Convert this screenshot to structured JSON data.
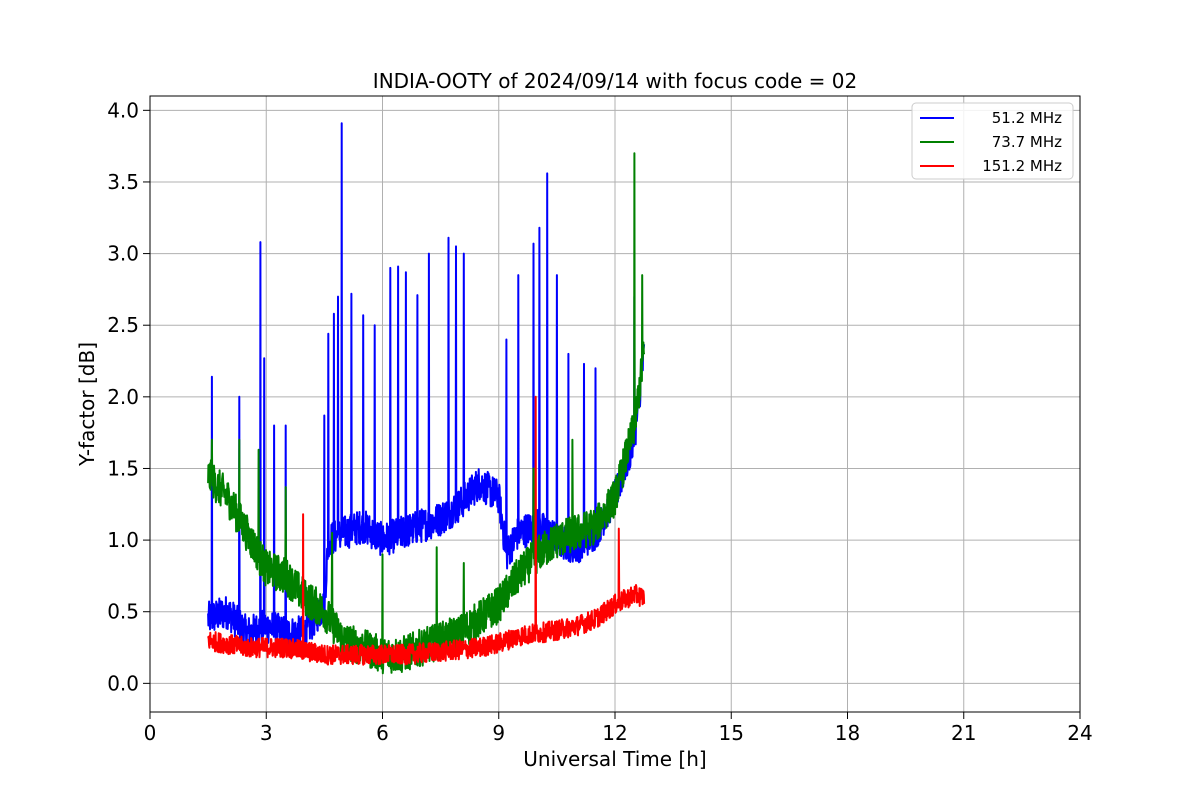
{
  "chart_data": {
    "type": "line",
    "title": "INDIA-OOTY of 2024/09/14 with focus code = 02",
    "xlabel": "Universal Time [h]",
    "ylabel": "Y-factor [dB]",
    "xlim": [
      0,
      24
    ],
    "ylim": [
      -0.2,
      4.1
    ],
    "xticks": [
      0,
      3,
      6,
      9,
      12,
      15,
      18,
      21,
      24
    ],
    "xtick_labels": [
      "0",
      "3",
      "6",
      "9",
      "12",
      "15",
      "18",
      "21",
      "24"
    ],
    "yticks": [
      0.0,
      0.5,
      1.0,
      1.5,
      2.0,
      2.5,
      3.0,
      3.5,
      4.0
    ],
    "ytick_labels": [
      "0.0",
      "0.5",
      "1.0",
      "1.5",
      "2.0",
      "2.5",
      "3.0",
      "3.5",
      "4.0"
    ],
    "grid": true,
    "legend_position": "top-right",
    "series": [
      {
        "name": "51.2 MHz",
        "color": "#0000ff",
        "baseline": [
          [
            1.5,
            0.45
          ],
          [
            2.0,
            0.5
          ],
          [
            2.5,
            0.35
          ],
          [
            3.0,
            0.4
          ],
          [
            3.5,
            0.35
          ],
          [
            4.0,
            0.35
          ],
          [
            4.5,
            0.55
          ],
          [
            4.6,
            1.0
          ],
          [
            5.0,
            1.05
          ],
          [
            5.5,
            1.1
          ],
          [
            6.0,
            1.0
          ],
          [
            6.5,
            1.05
          ],
          [
            7.0,
            1.1
          ],
          [
            7.5,
            1.15
          ],
          [
            8.0,
            1.25
          ],
          [
            8.5,
            1.4
          ],
          [
            9.0,
            1.3
          ],
          [
            9.2,
            0.9
          ],
          [
            9.5,
            1.05
          ],
          [
            10.0,
            1.1
          ],
          [
            10.5,
            1.0
          ],
          [
            11.0,
            0.95
          ],
          [
            11.5,
            1.05
          ],
          [
            12.0,
            1.3
          ],
          [
            12.5,
            1.7
          ],
          [
            12.75,
            2.3
          ]
        ],
        "noise": 0.12,
        "spikes": [
          [
            1.6,
            2.14
          ],
          [
            2.3,
            2.0
          ],
          [
            2.85,
            3.08
          ],
          [
            2.95,
            2.27
          ],
          [
            3.2,
            1.8
          ],
          [
            3.5,
            1.8
          ],
          [
            4.5,
            1.87
          ],
          [
            4.6,
            2.44
          ],
          [
            4.75,
            2.58
          ],
          [
            4.85,
            2.7
          ],
          [
            4.95,
            3.91
          ],
          [
            5.2,
            2.72
          ],
          [
            5.5,
            2.57
          ],
          [
            5.8,
            2.5
          ],
          [
            6.2,
            2.9
          ],
          [
            6.4,
            2.91
          ],
          [
            6.6,
            2.87
          ],
          [
            6.9,
            2.71
          ],
          [
            7.2,
            3.0
          ],
          [
            7.7,
            3.11
          ],
          [
            7.9,
            3.05
          ],
          [
            8.1,
            3.0
          ],
          [
            9.2,
            2.4
          ],
          [
            9.5,
            2.85
          ],
          [
            9.9,
            3.07
          ],
          [
            10.05,
            3.18
          ],
          [
            10.25,
            3.56
          ],
          [
            10.5,
            2.85
          ],
          [
            10.8,
            2.3
          ],
          [
            11.2,
            2.23
          ],
          [
            11.5,
            2.2
          ],
          [
            12.5,
            2.7
          ]
        ]
      },
      {
        "name": "73.7 MHz",
        "color": "#008000",
        "baseline": [
          [
            1.5,
            1.45
          ],
          [
            2.0,
            1.3
          ],
          [
            2.5,
            1.05
          ],
          [
            3.0,
            0.8
          ],
          [
            3.5,
            0.75
          ],
          [
            4.0,
            0.6
          ],
          [
            4.5,
            0.5
          ],
          [
            5.0,
            0.3
          ],
          [
            5.5,
            0.25
          ],
          [
            6.0,
            0.2
          ],
          [
            6.5,
            0.2
          ],
          [
            7.0,
            0.25
          ],
          [
            7.5,
            0.3
          ],
          [
            8.0,
            0.35
          ],
          [
            8.5,
            0.45
          ],
          [
            9.0,
            0.55
          ],
          [
            9.5,
            0.75
          ],
          [
            10.0,
            0.9
          ],
          [
            10.5,
            1.0
          ],
          [
            11.0,
            1.05
          ],
          [
            11.5,
            1.1
          ],
          [
            12.0,
            1.3
          ],
          [
            12.5,
            1.8
          ],
          [
            12.75,
            2.3
          ]
        ],
        "noise": 0.13,
        "spikes": [
          [
            1.6,
            1.7
          ],
          [
            2.3,
            1.7
          ],
          [
            2.8,
            1.63
          ],
          [
            3.5,
            1.37
          ],
          [
            4.7,
            1.05
          ],
          [
            6.0,
            0.9
          ],
          [
            7.4,
            0.95
          ],
          [
            8.1,
            0.84
          ],
          [
            9.9,
            1.5
          ],
          [
            10.9,
            1.7
          ],
          [
            12.5,
            3.7
          ],
          [
            12.7,
            2.85
          ]
        ]
      },
      {
        "name": "151.2 MHz",
        "color": "#ff0000",
        "baseline": [
          [
            1.5,
            0.3
          ],
          [
            2.5,
            0.25
          ],
          [
            3.5,
            0.25
          ],
          [
            4.5,
            0.2
          ],
          [
            5.5,
            0.2
          ],
          [
            6.5,
            0.2
          ],
          [
            7.5,
            0.22
          ],
          [
            8.5,
            0.25
          ],
          [
            9.0,
            0.28
          ],
          [
            9.5,
            0.33
          ],
          [
            10.0,
            0.35
          ],
          [
            10.5,
            0.37
          ],
          [
            11.0,
            0.4
          ],
          [
            11.5,
            0.45
          ],
          [
            12.0,
            0.55
          ],
          [
            12.5,
            0.62
          ],
          [
            12.75,
            0.6
          ]
        ],
        "noise": 0.07,
        "spikes": [
          [
            3.95,
            1.18
          ],
          [
            9.95,
            2.0
          ],
          [
            12.1,
            1.08
          ]
        ]
      }
    ]
  }
}
